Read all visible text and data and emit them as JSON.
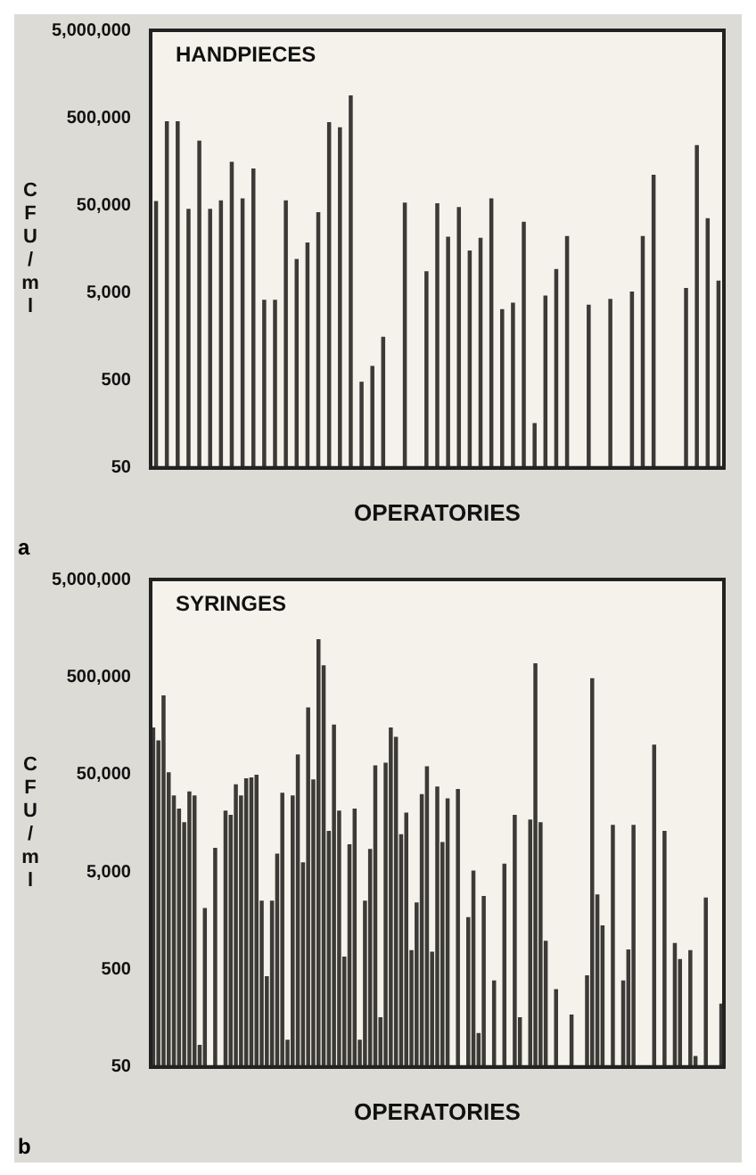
{
  "chart_data": [
    {
      "type": "bar",
      "title": "HANDPIECES",
      "xlabel": "OPERATORIES",
      "ylabel": "CFU/ml",
      "annotations": [
        "a"
      ],
      "log": "y",
      "tick_labels": "y",
      "color": "#3c3a36",
      "ylim": [
        50,
        5000000
      ],
      "yticks": [
        {
          "value": 50,
          "label": "50"
        },
        {
          "value": 500,
          "label": "500"
        },
        {
          "value": 5000,
          "label": "5,000"
        },
        {
          "value": 50000,
          "label": "50,000"
        },
        {
          "value": 500000,
          "label": "500,000"
        },
        {
          "value": 5000000,
          "label": "5,000,000"
        }
      ],
      "categories": [
        null,
        null,
        null,
        null,
        null,
        null,
        null,
        null,
        null,
        null,
        null,
        null,
        null,
        null,
        null,
        null,
        null,
        null,
        null,
        null,
        null,
        null,
        null,
        null,
        null,
        null,
        null,
        null,
        null,
        null,
        null,
        null,
        null,
        null,
        null,
        null,
        null,
        null,
        null,
        null,
        null,
        null,
        null,
        null,
        null,
        null,
        null,
        null,
        null,
        null,
        null,
        null,
        null
      ],
      "values": [
        55000,
        450000,
        450000,
        45000,
        270000,
        45000,
        56000,
        155000,
        59000,
        130000,
        4100,
        4100,
        56000,
        12000,
        18500,
        41000,
        440000,
        385000,
        890000,
        475,
        720,
        1550,
        null,
        53000,
        null,
        8700,
        52000,
        21600,
        47000,
        15000,
        21000,
        59000,
        3200,
        3800,
        32000,
        160,
        4600,
        9200,
        22000,
        null,
        3600,
        null,
        4200,
        null,
        5100,
        22000,
        110000,
        null,
        null,
        5600,
        240000,
        35000,
        6800
      ]
    },
    {
      "type": "bar",
      "title": "SYRINGES",
      "xlabel": "OPERATORIES",
      "ylabel": "CFU/ml",
      "annotations": [
        "b"
      ],
      "log": "y",
      "tick_labels": "y",
      "color": "#3c3a36",
      "ylim": [
        50,
        5000000
      ],
      "yticks": [
        {
          "value": 50,
          "label": "50"
        },
        {
          "value": 500,
          "label": "500"
        },
        {
          "value": 5000,
          "label": "5,000"
        },
        {
          "value": 50000,
          "label": "50,000"
        },
        {
          "value": 500000,
          "label": "500,000"
        },
        {
          "value": 5000000,
          "label": "5,000,000"
        }
      ],
      "categories": [
        null,
        null,
        null,
        null,
        null,
        null,
        null,
        null,
        null,
        null,
        null,
        null,
        null,
        null,
        null,
        null,
        null,
        null,
        null,
        null,
        null,
        null,
        null,
        null,
        null,
        null,
        null,
        null,
        null,
        null,
        null,
        null,
        null,
        null,
        null,
        null,
        null,
        null,
        null,
        null,
        null,
        null,
        null,
        null,
        null,
        null,
        null,
        null,
        null,
        null,
        null,
        null,
        null,
        null,
        null,
        null,
        null,
        null,
        null,
        null,
        null,
        null,
        null,
        null,
        null,
        null,
        null,
        null,
        null,
        null,
        null,
        null,
        null,
        null,
        null,
        null,
        null,
        null,
        null,
        null,
        null,
        null,
        null,
        null,
        null,
        null,
        null,
        null,
        null,
        null,
        null,
        null,
        null,
        null,
        null,
        null,
        null,
        null,
        null,
        null,
        null,
        null,
        null,
        null,
        null,
        null,
        null,
        null,
        null,
        null,
        null
      ],
      "values": [
        150000,
        110000,
        320000,
        52000,
        30000,
        22000,
        16000,
        33000,
        30000,
        83,
        2100,
        null,
        8700,
        null,
        21000,
        19000,
        39000,
        30000,
        45000,
        46000,
        49000,
        2500,
        420,
        2500,
        7600,
        32000,
        94,
        30000,
        79000,
        6200,
        240000,
        44000,
        1200000,
        650000,
        13000,
        160000,
        21000,
        670,
        9500,
        22000,
        94,
        2500,
        8500,
        61000,
        160,
        65000,
        150000,
        120000,
        12000,
        20000,
        780,
        2400,
        31000,
        60000,
        750,
        37000,
        10000,
        28000,
        null,
        35000,
        null,
        1700,
        5100,
        110,
        2800,
        null,
        380,
        null,
        6000,
        null,
        19000,
        160,
        null,
        17000,
        680000,
        16000,
        970,
        null,
        310,
        null,
        null,
        170,
        null,
        null,
        430,
        480000,
        2900,
        1400,
        null,
        15000,
        null,
        380,
        790,
        15000,
        null,
        null,
        null,
        100000,
        null,
        13000,
        null,
        920,
        630,
        null,
        780,
        64,
        null,
        2700,
        null,
        null,
        220
      ]
    }
  ]
}
